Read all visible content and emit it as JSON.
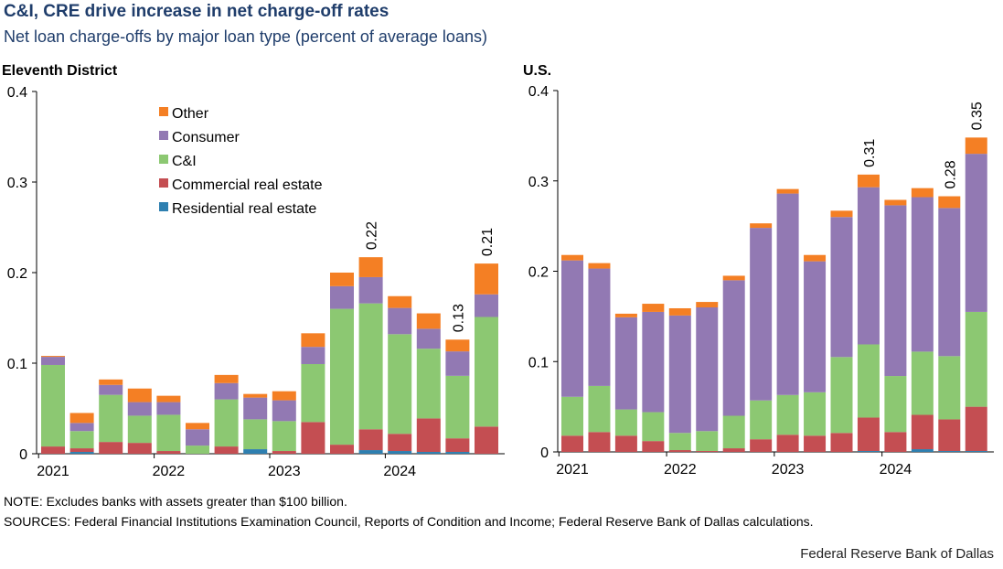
{
  "title": "C&I, CRE drive increase in net charge-off rates",
  "subtitle": "Net loan charge-offs by major loan type (percent of average loans)",
  "note": "NOTE: Excludes banks with assets greater than $100 billion.",
  "sources": "SOURCES: Federal Financial Institutions  Examination Council, Reports of Condition and Income; Federal Reserve Bank of Dallas calculations.",
  "credit": "Federal Reserve Bank of Dallas",
  "colors": {
    "Residential real estate": "#2e7fb0",
    "Commercial real estate": "#c44e52",
    "C&I": "#8cc872",
    "Consumer": "#9279b3",
    "Other": "#f47f24"
  },
  "chart_data": [
    {
      "type": "bar",
      "stacked": true,
      "panel_title": "Eleventh District",
      "categories": [
        "2021 Q1",
        "2021 Q2",
        "2021 Q3",
        "2021 Q4",
        "2022 Q1",
        "2022 Q2",
        "2022 Q3",
        "2022 Q4",
        "2023 Q1",
        "2023 Q2",
        "2023 Q3",
        "2023 Q4",
        "2024 Q1",
        "2024 Q2",
        "2024 Q3",
        "2024 Q4"
      ],
      "x_tick_labels": [
        "2021",
        "2022",
        "2023",
        "2024"
      ],
      "ylim": [
        0,
        0.4
      ],
      "yticks": [
        "0",
        "0.1",
        "0.2",
        "0.3",
        "0.4"
      ],
      "legend": [
        "Other",
        "Consumer",
        "C&I",
        "Commercial real estate",
        "Residential real estate"
      ],
      "series": [
        {
          "name": "Residential real estate",
          "values": [
            0.0,
            0.002,
            0.0,
            0.0,
            0.0,
            0.0,
            0.0,
            0.005,
            0.0,
            0.0,
            0.0,
            0.004,
            0.003,
            0.002,
            0.002,
            0.0
          ]
        },
        {
          "name": "Commercial real estate",
          "values": [
            0.008,
            0.004,
            0.013,
            0.012,
            0.003,
            0.0,
            0.008,
            0.0,
            0.003,
            0.035,
            0.01,
            0.023,
            0.019,
            0.037,
            0.015,
            0.03
          ]
        },
        {
          "name": "C&I",
          "values": [
            0.09,
            0.019,
            0.052,
            0.03,
            0.04,
            0.009,
            0.052,
            0.033,
            0.033,
            0.064,
            0.15,
            0.139,
            0.11,
            0.077,
            0.069,
            0.121
          ]
        },
        {
          "name": "Consumer",
          "values": [
            0.009,
            0.009,
            0.011,
            0.015,
            0.014,
            0.018,
            0.018,
            0.024,
            0.023,
            0.019,
            0.025,
            0.029,
            0.029,
            0.022,
            0.027,
            0.025
          ]
        },
        {
          "name": "Other",
          "values": [
            0.001,
            0.011,
            0.006,
            0.015,
            0.007,
            0.007,
            0.009,
            0.004,
            0.01,
            0.015,
            0.015,
            0.022,
            0.013,
            0.017,
            0.013,
            0.034
          ]
        }
      ],
      "annotations": [
        {
          "index": 11,
          "label": "0.22"
        },
        {
          "index": 14,
          "label": "0.13"
        },
        {
          "index": 15,
          "label": "0.21"
        }
      ]
    },
    {
      "type": "bar",
      "stacked": true,
      "panel_title": "U.S.",
      "categories": [
        "2021 Q1",
        "2021 Q2",
        "2021 Q3",
        "2021 Q4",
        "2022 Q1",
        "2022 Q2",
        "2022 Q3",
        "2022 Q4",
        "2023 Q1",
        "2023 Q2",
        "2023 Q3",
        "2023 Q4",
        "2024 Q1",
        "2024 Q2",
        "2024 Q3",
        "2024 Q4"
      ],
      "x_tick_labels": [
        "2021",
        "2022",
        "2023",
        "2024"
      ],
      "ylim": [
        0,
        0.4
      ],
      "yticks": [
        "0",
        "0.1",
        "0.2",
        "0.3",
        "0.4"
      ],
      "series": [
        {
          "name": "Residential real estate",
          "values": [
            0.0,
            0.0,
            0.0,
            0.0,
            0.0,
            0.0,
            0.0,
            0.0,
            0.0,
            0.0,
            0.0,
            0.001,
            0.0,
            0.003,
            0.001,
            0.001
          ]
        },
        {
          "name": "Commercial real estate",
          "values": [
            0.018,
            0.022,
            0.018,
            0.012,
            0.002,
            0.001,
            0.004,
            0.014,
            0.019,
            0.018,
            0.021,
            0.037,
            0.022,
            0.038,
            0.035,
            0.049
          ]
        },
        {
          "name": "C&I",
          "values": [
            0.043,
            0.051,
            0.029,
            0.032,
            0.019,
            0.022,
            0.036,
            0.043,
            0.044,
            0.048,
            0.084,
            0.081,
            0.062,
            0.07,
            0.07,
            0.105
          ]
        },
        {
          "name": "Consumer",
          "values": [
            0.151,
            0.13,
            0.102,
            0.111,
            0.13,
            0.137,
            0.15,
            0.191,
            0.223,
            0.145,
            0.155,
            0.174,
            0.189,
            0.171,
            0.164,
            0.175
          ]
        },
        {
          "name": "Other",
          "values": [
            0.006,
            0.006,
            0.004,
            0.009,
            0.008,
            0.006,
            0.005,
            0.005,
            0.005,
            0.007,
            0.007,
            0.014,
            0.006,
            0.01,
            0.013,
            0.018
          ]
        }
      ],
      "annotations": [
        {
          "index": 11,
          "label": "0.31"
        },
        {
          "index": 14,
          "label": "0.28"
        },
        {
          "index": 15,
          "label": "0.35"
        }
      ]
    }
  ]
}
